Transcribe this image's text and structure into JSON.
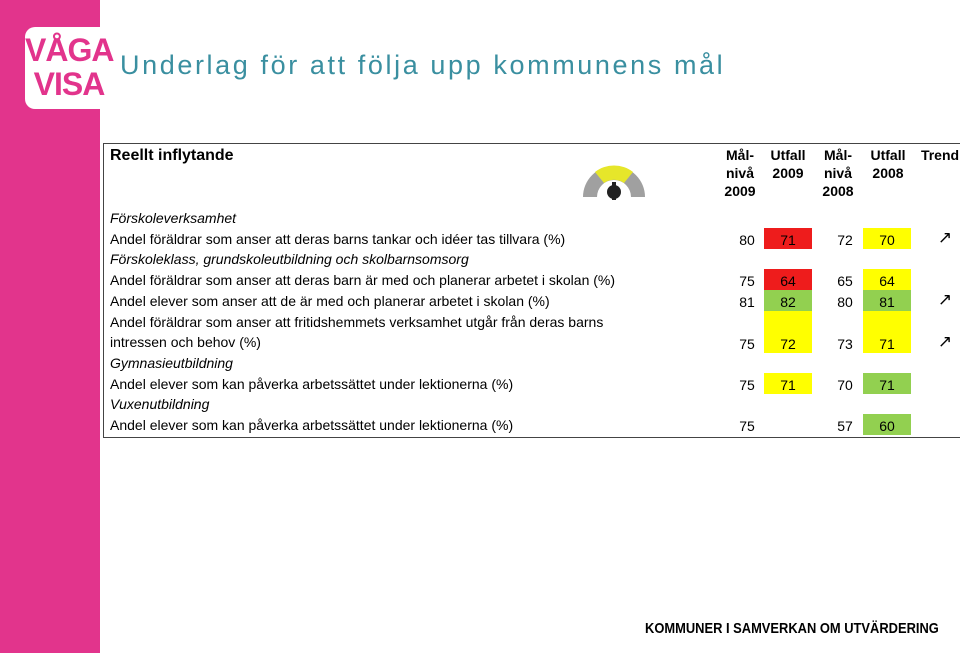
{
  "logo": {
    "line1": "VÅGA",
    "line2": "VISA"
  },
  "title": "Underlag för att följa upp kommunens mål",
  "table": {
    "heading": "Reellt inflytande",
    "columns": [
      "Mål-\nnivå\n2009",
      "Utfall\n2009",
      "Mål-\nnivå\n2008",
      "Utfall\n2008",
      "Trend"
    ],
    "rows": [
      {
        "section": "Förskoleverksamhet"
      },
      {
        "label": "Andel föräldrar som anser att deras barns tankar och idéer tas tillvara (%)",
        "values": [
          80,
          71,
          72,
          70
        ],
        "colors": [
          null,
          "#ee1c1c",
          null,
          "#ffff00"
        ],
        "trend": "↗"
      },
      {
        "section": "Förskoleklass, grundskoleutbildning och skolbarnsomsorg"
      },
      {
        "label": "Andel föräldrar som anser att deras barn är med och planerar arbetet i skolan (%)",
        "values": [
          75,
          64,
          65,
          64
        ],
        "colors": [
          null,
          "#ee1c1c",
          null,
          "#ffff00"
        ]
      },
      {
        "label": "Andel elever som anser att de är med och planerar arbetet i skolan (%)",
        "values": [
          81,
          82,
          80,
          81
        ],
        "colors": [
          null,
          "#92d050",
          null,
          "#92d050"
        ],
        "trend": "↗"
      },
      {
        "label": "Andel föräldrar som anser att fritidshemmets verksamhet utgår från deras barns\nintressen och behov (%)",
        "values": [
          75,
          72,
          73,
          71
        ],
        "colors": [
          null,
          "#ffff00",
          null,
          "#ffff00"
        ],
        "trend": "↗"
      },
      {
        "section": "Gymnasieutbildning"
      },
      {
        "label": "Andel elever som kan påverka arbetssättet under lektionerna (%)",
        "values": [
          75,
          71,
          70,
          71
        ],
        "colors": [
          null,
          "#ffff00",
          null,
          "#92d050"
        ]
      },
      {
        "section": "Vuxenutbildning"
      },
      {
        "label": "Andel elever som kan påverka arbetssättet under lektionerna (%)",
        "values": [
          75,
          null,
          57,
          60
        ],
        "colors": [
          null,
          null,
          null,
          "#92d050"
        ]
      }
    ]
  },
  "footer": "KOMMUNER I SAMVERKAN OM UTVÄRDERING"
}
